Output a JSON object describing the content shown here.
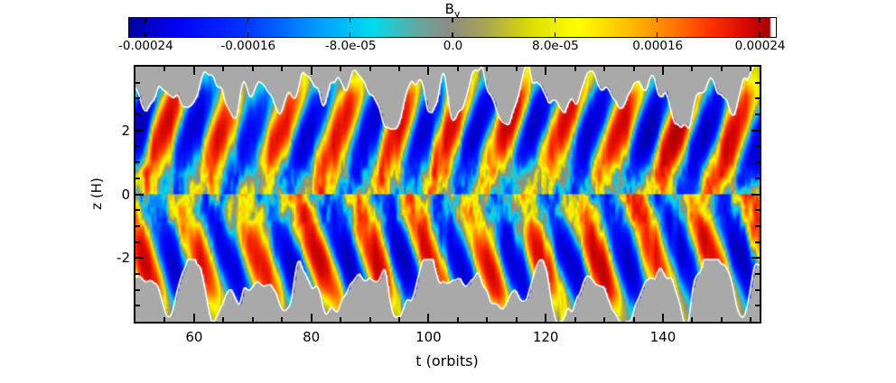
{
  "page": {
    "background": "#ffffff"
  },
  "chart_data": {
    "type": "heatmap",
    "title": {
      "base": "B",
      "sub": "y"
    },
    "xlabel": "t (orbits)",
    "ylabel": "z (H)",
    "x_axis": {
      "min": 50,
      "max": 156.5,
      "major_ticks": [
        60,
        80,
        100,
        120,
        140
      ],
      "major_tick_labels": [
        "60",
        "80",
        "100",
        "120",
        "140"
      ],
      "minor_step": 5
    },
    "y_axis": {
      "min": -4,
      "max": 4,
      "major_ticks": [
        2,
        0,
        -2
      ],
      "major_tick_labels": [
        "2",
        "0",
        "-2"
      ],
      "minor_step": 0.5
    },
    "colorbar": {
      "min": -0.00024,
      "max": 0.00024,
      "tick_values": [
        -0.00024,
        -0.00016,
        -8e-05,
        0.0,
        8e-05,
        0.00016,
        0.00024
      ],
      "tick_labels": [
        "-0.00024",
        "-0.00016",
        "-8.0e-05",
        "0.0",
        "8.0e-05",
        "0.00016",
        "0.00024"
      ],
      "end_pad_fraction": 0.025
    },
    "colormap": [
      {
        "p": 0.0,
        "c": "#0000a0"
      },
      {
        "p": 0.07,
        "c": "#0000f2"
      },
      {
        "p": 0.18,
        "c": "#0033ff"
      },
      {
        "p": 0.3,
        "c": "#00a0ff"
      },
      {
        "p": 0.38,
        "c": "#00dcec"
      },
      {
        "p": 0.45,
        "c": "#63a8a0"
      },
      {
        "p": 0.5,
        "c": "#8c8c82"
      },
      {
        "p": 0.555,
        "c": "#a8a455"
      },
      {
        "p": 0.63,
        "c": "#dede00"
      },
      {
        "p": 0.7,
        "c": "#ffff00"
      },
      {
        "p": 0.78,
        "c": "#ffbe00"
      },
      {
        "p": 0.85,
        "c": "#ff7800"
      },
      {
        "p": 0.91,
        "c": "#ff3000"
      },
      {
        "p": 0.96,
        "c": "#dc0800"
      },
      {
        "p": 1.0,
        "c": "#a40000"
      }
    ],
    "field_model": {
      "description": "MRI butterfly diagram: azimuthal field By(t,z), sign alternating with ~10-orbit cycle, patches propagating away from midplane, fine turbulence near z=0, gray masked corona beyond |z|~3 outlined by white contour",
      "period_orbits": 9.8,
      "tilt_orbits_per_H": 1.7,
      "hemisphere_phase_offset": 2.4,
      "amp_midplane": 0.32,
      "amp_peak": 0.75,
      "amp_peak_z": 2.0,
      "turb_amp_base": 0.26,
      "turb_amp_midplane": 0.42,
      "boundary_mean_H": 3.05,
      "boundary_wiggle_H": 1.3,
      "mask_color": "#a9a9a9",
      "contour_color": "#ffffff",
      "seed": 7
    }
  }
}
